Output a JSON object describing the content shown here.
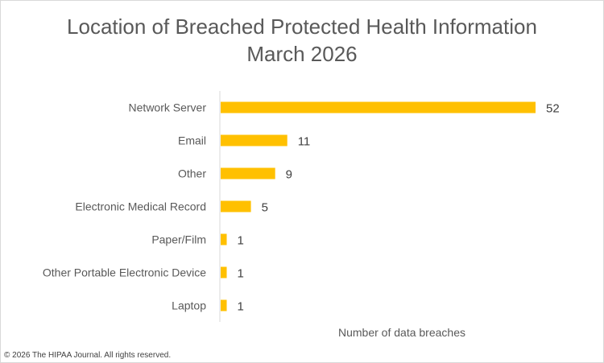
{
  "chart_data": {
    "type": "bar",
    "orientation": "horizontal",
    "title": "Location of Breached Protected Health Information",
    "subtitle": "March 2026",
    "xlabel": "Number of data breaches",
    "ylabel": "",
    "categories": [
      "Network Server",
      "Email",
      "Other",
      "Electronic Medical Record",
      "Paper/Film",
      "Other Portable Electronic Device",
      "Laptop"
    ],
    "values": [
      52,
      11,
      9,
      5,
      1,
      1,
      1
    ],
    "xlim": [
      0,
      52
    ],
    "grid": false,
    "legend": "none",
    "bar_color": "#FFC000"
  },
  "footer": {
    "copyright": "© 2026 The HIPAA Journal. All rights reserved."
  }
}
